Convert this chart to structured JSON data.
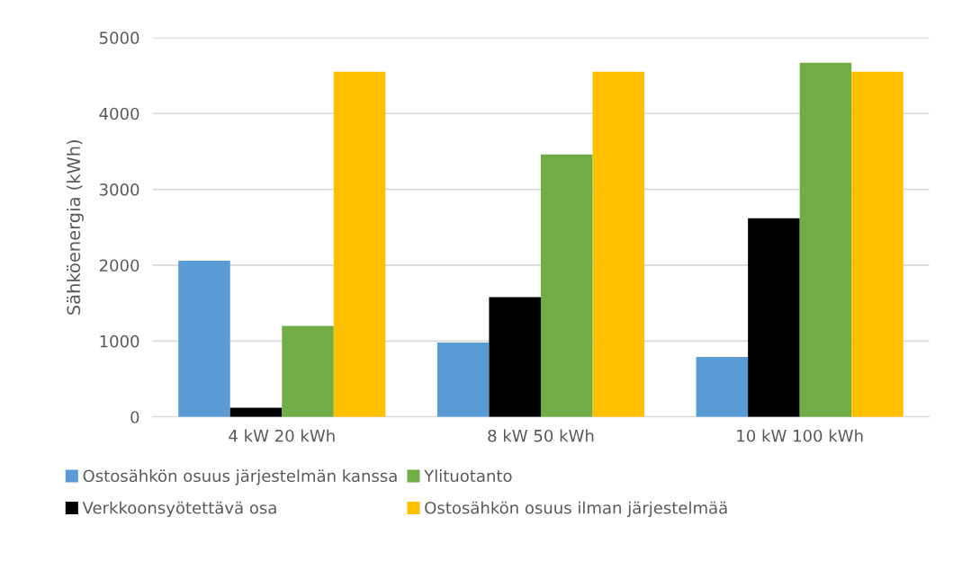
{
  "chart_data": {
    "type": "bar",
    "ylabel": "Sähköenergia (kWh)",
    "categories": [
      "4 kW 20 kWh",
      "8 kW 50 kWh",
      "10 kW 100 kWh"
    ],
    "series": [
      {
        "name": "Ostosähkön osuus järjestelmän kanssa",
        "color": "#5b9bd5",
        "values": [
          2060,
          980,
          790
        ]
      },
      {
        "name": "Verkkoonsyötettävä osa",
        "color": "#000000",
        "values": [
          120,
          1580,
          2620
        ]
      },
      {
        "name": "Ylituotanto",
        "color": "#70ad47",
        "values": [
          1200,
          3460,
          4670
        ]
      },
      {
        "name": "Ostosähkön osuus ilman järjestelmää",
        "color": "#ffc000",
        "values": [
          4550,
          4550,
          4550
        ]
      }
    ],
    "ylim": [
      0,
      5000
    ],
    "yticks": [
      0,
      1000,
      2000,
      3000,
      4000,
      5000
    ],
    "grid": "y",
    "legend": "bottom"
  }
}
